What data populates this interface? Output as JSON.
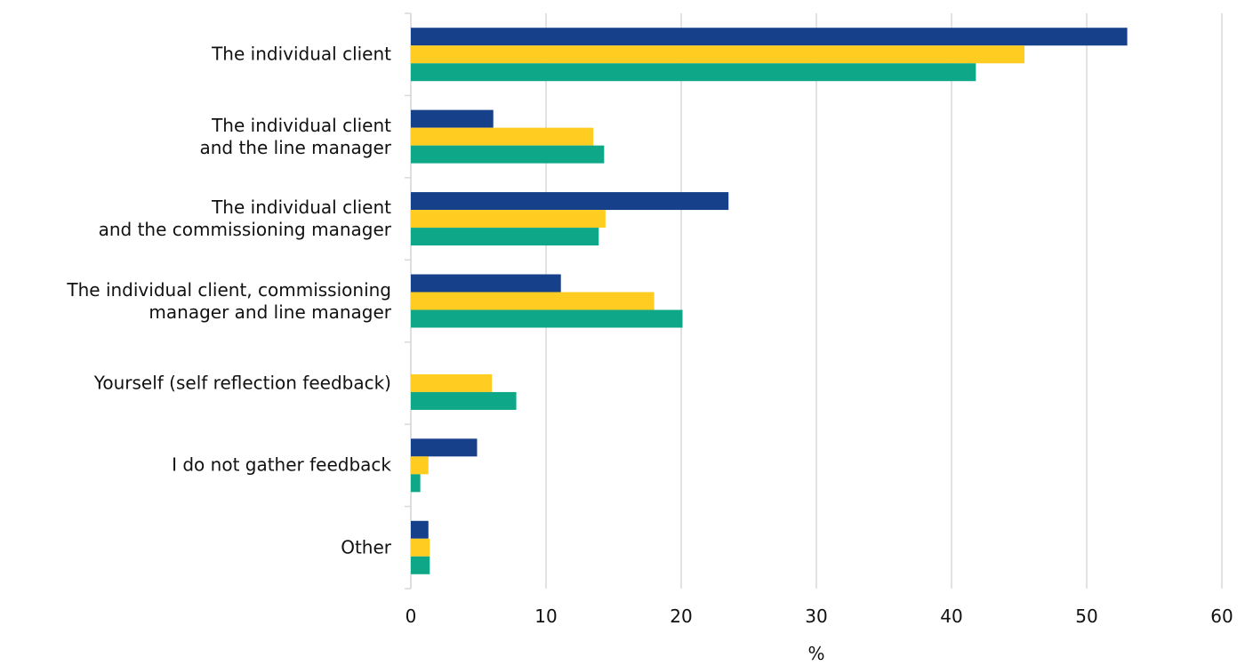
{
  "chart_data": {
    "type": "bar",
    "orientation": "horizontal",
    "categories": [
      "The individual client",
      "The individual client\nand the line manager",
      "The individual client\nand the commissioning manager",
      "The individual client, commissioning\nmanager and line manager",
      "Yourself (self reflection feedback)",
      "I do not gather feedback",
      "Other"
    ],
    "series": [
      {
        "color": "#17408b",
        "values": [
          53,
          6.1,
          23.5,
          11.1,
          0,
          4.9,
          1.3
        ]
      },
      {
        "color": "#ffcc22",
        "values": [
          45.4,
          13.5,
          14.4,
          18.0,
          6.0,
          1.3,
          1.4
        ]
      },
      {
        "color": "#0ea889",
        "values": [
          41.8,
          14.3,
          13.9,
          20.1,
          7.8,
          0.7,
          1.4
        ]
      }
    ],
    "xlim": [
      0,
      60
    ],
    "xticks": [
      0,
      10,
      20,
      30,
      40,
      50,
      60
    ],
    "xlabel": "%",
    "grid": true
  }
}
